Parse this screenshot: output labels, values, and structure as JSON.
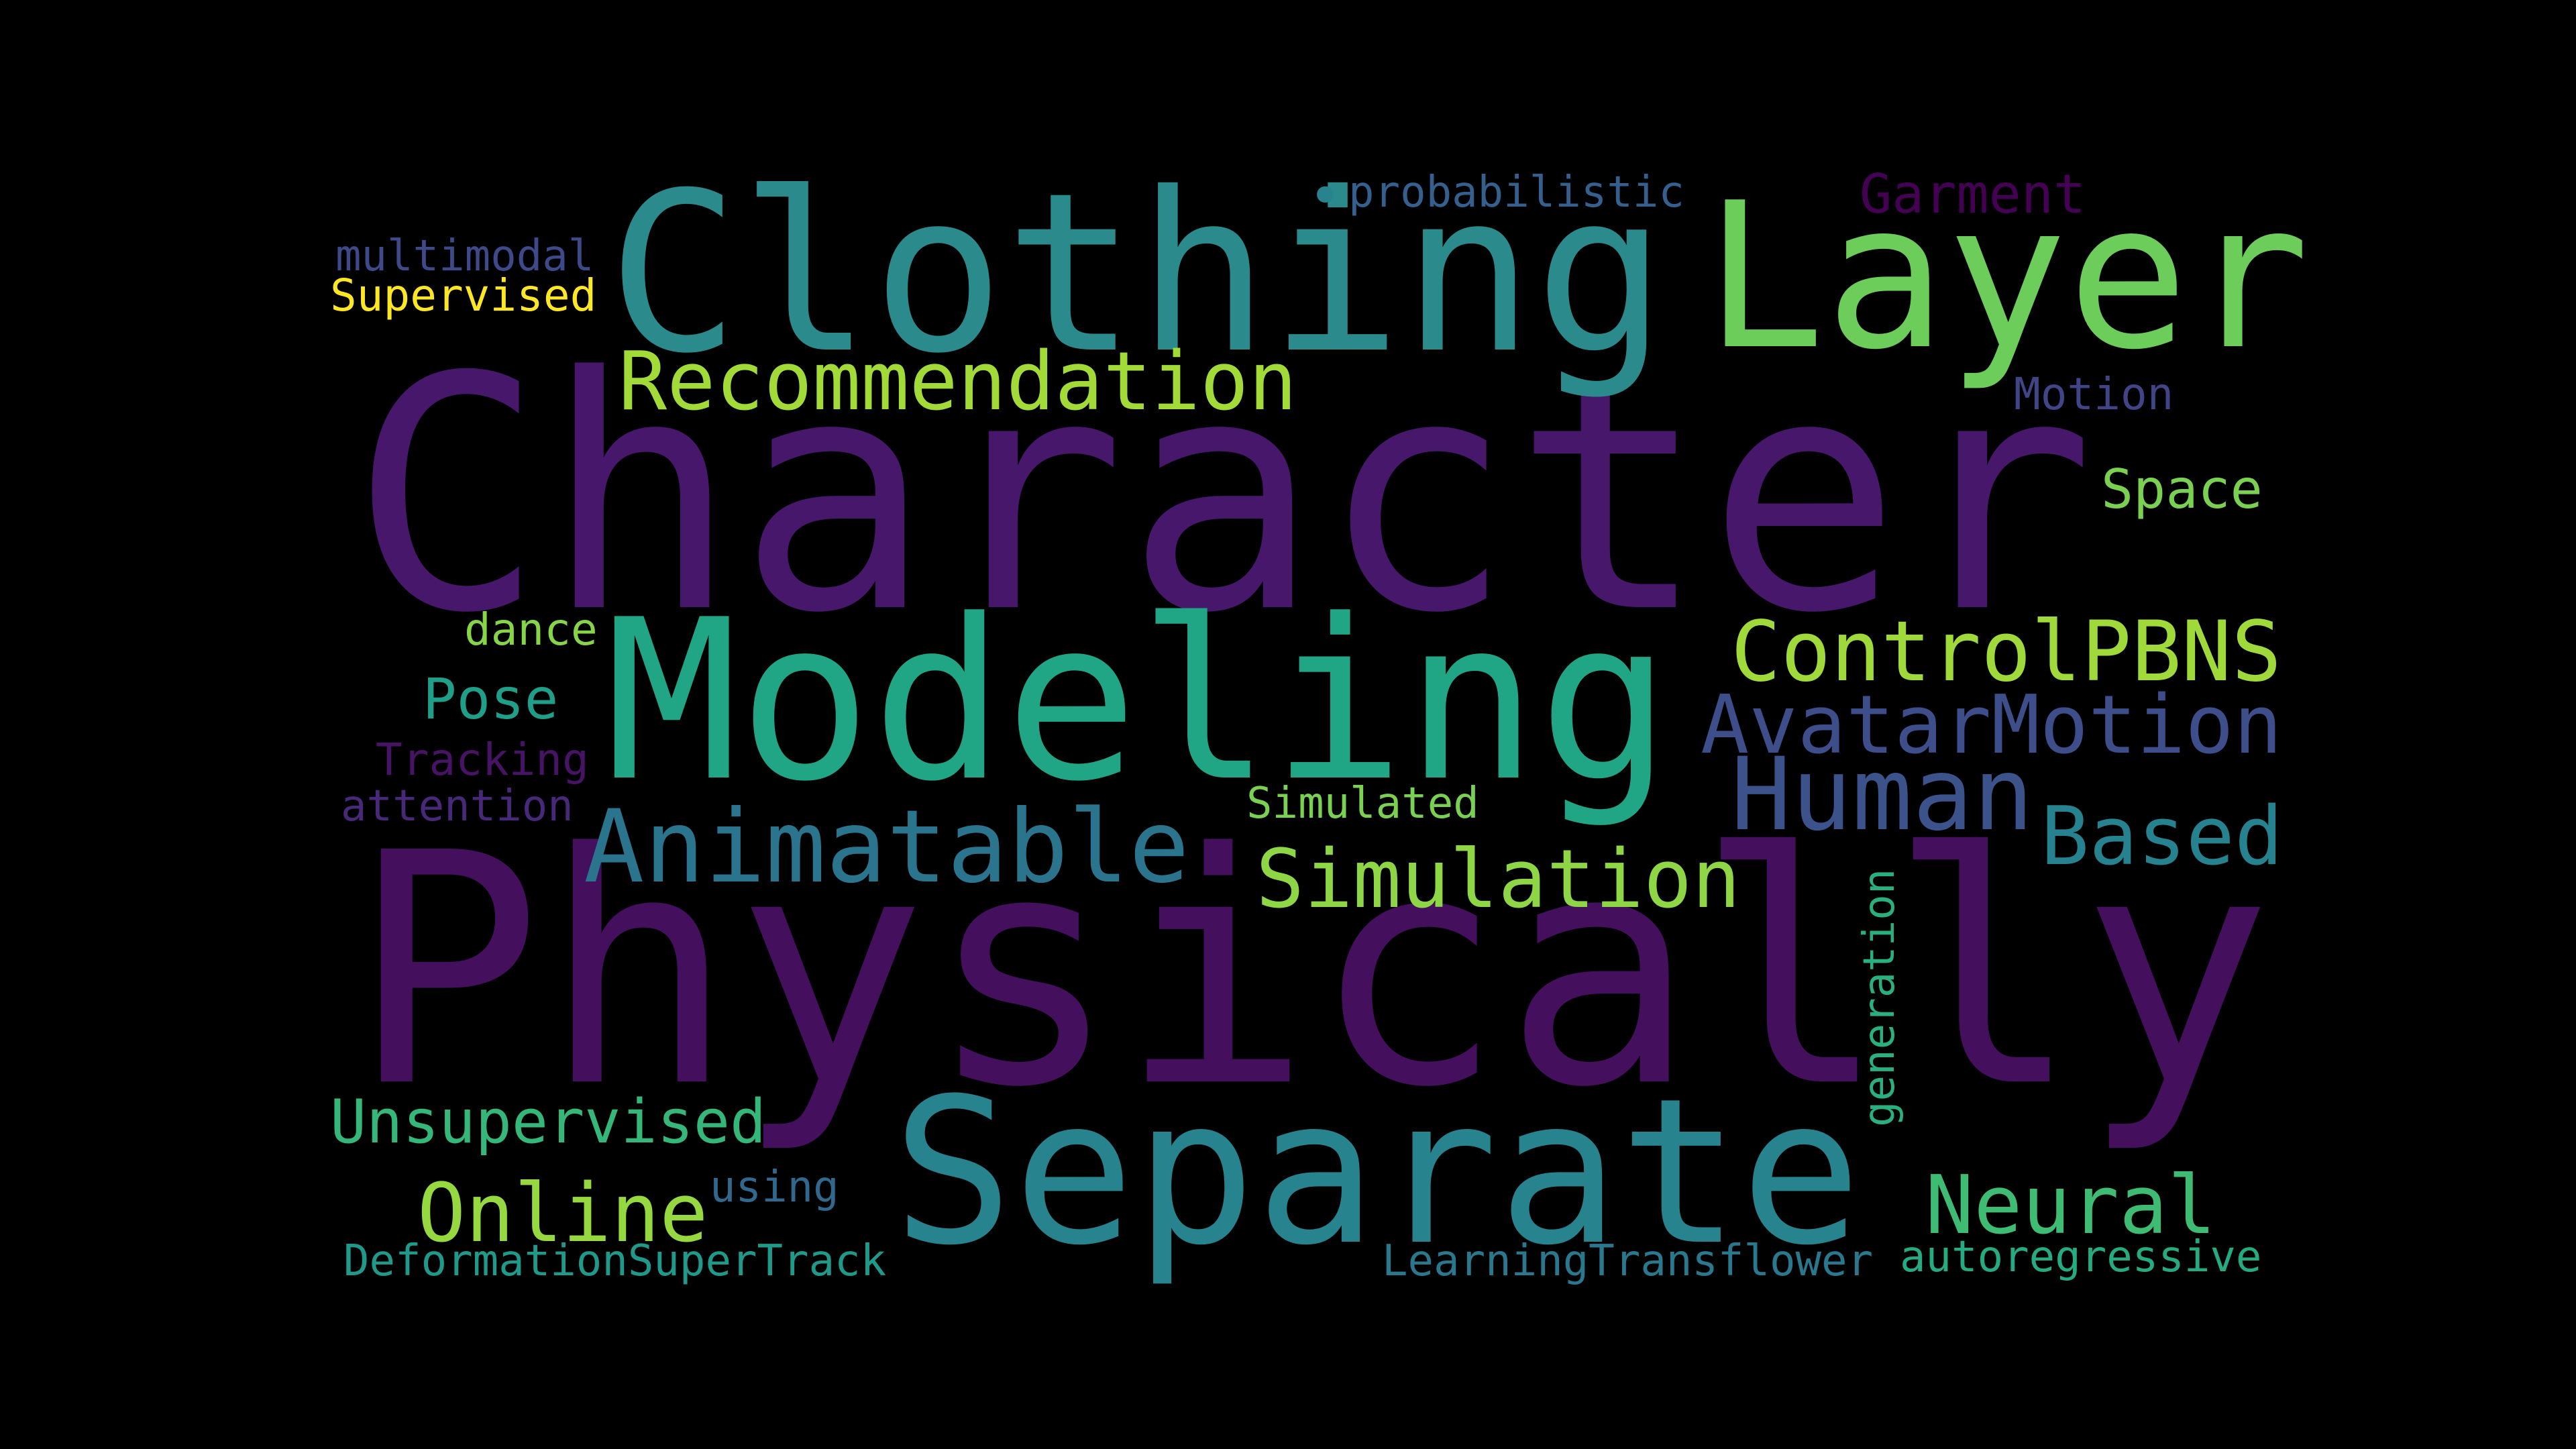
{
  "palette": {
    "background": "#000000",
    "dark_purple": "#440f5d",
    "purple": "#46176a",
    "indigo": "#3e4a8a",
    "blue": "#3d5492",
    "teal": "#2b8b8c",
    "teal_dark": "#27798a",
    "green_teal": "#26a47f",
    "green": "#3fba6f",
    "lime": "#72cf55",
    "yellow_green": "#a4d73f",
    "yellow": "#fde725"
  },
  "words": [
    {
      "id": "character",
      "text": "Character",
      "color": "#46176a"
    },
    {
      "id": "physically",
      "text": "Physically",
      "color": "#440f5d"
    },
    {
      "id": "clothing",
      "text": "Clothing",
      "color": "#2b8b8c"
    },
    {
      "id": "layer",
      "text": "Layer",
      "color": "#6ccd5a"
    },
    {
      "id": "modeling",
      "text": "Modeling",
      "color": "#21a685"
    },
    {
      "id": "separate",
      "text": "Separate",
      "color": "#27838e"
    },
    {
      "id": "recommendation",
      "text": "Recommendation",
      "color": "#a2da37"
    },
    {
      "id": "controlpbns",
      "text": "ControlPBNS",
      "color": "#9fda3a"
    },
    {
      "id": "avatarmotion",
      "text": "AvatarMotion",
      "color": "#3d4e8a"
    },
    {
      "id": "human",
      "text": "Human",
      "color": "#3b528b"
    },
    {
      "id": "animatable",
      "text": "Animatable",
      "color": "#2b748e"
    },
    {
      "id": "based",
      "text": "Based",
      "color": "#26828e"
    },
    {
      "id": "simulation",
      "text": "Simulation",
      "color": "#8ed645"
    },
    {
      "id": "neural",
      "text": "Neural",
      "color": "#3fbc73"
    },
    {
      "id": "online",
      "text": "Online",
      "color": "#95d840"
    },
    {
      "id": "unsupervised",
      "text": "Unsupervised",
      "color": "#35b779"
    },
    {
      "id": "garment",
      "text": "Garment",
      "color": "#440154"
    },
    {
      "id": "probabilistic",
      "text": "probabilistic",
      "color": "#355f8d"
    },
    {
      "id": "multimodal",
      "text": "multimodal",
      "color": "#3e4989"
    },
    {
      "id": "supervised",
      "text": "Supervised",
      "color": "#fde725"
    },
    {
      "id": "motion",
      "text": "Motion",
      "color": "#414487"
    },
    {
      "id": "space",
      "text": "Space",
      "color": "#7ad151"
    },
    {
      "id": "dance",
      "text": "dance",
      "color": "#86d549"
    },
    {
      "id": "pose",
      "text": "Pose",
      "color": "#1f9e89"
    },
    {
      "id": "tracking",
      "text": "Tracking",
      "color": "#471365"
    },
    {
      "id": "attention",
      "text": "attention",
      "color": "#482878"
    },
    {
      "id": "simulated",
      "text": "Simulated",
      "color": "#7ad151"
    },
    {
      "id": "generation",
      "text": "generation",
      "color": "#2ab07f"
    },
    {
      "id": "using",
      "text": "using",
      "color": "#31688e"
    },
    {
      "id": "deformationsupertrack",
      "text": "DeformationSuperTrack",
      "color": "#1f9a8a"
    },
    {
      "id": "learningtransflower",
      "text": "LearningTransflower",
      "color": "#2a788e"
    },
    {
      "id": "autoregressive",
      "text": "autoregressive",
      "color": "#25ab82"
    },
    {
      "id": "dot1",
      "text": "•",
      "color": "#27838e"
    },
    {
      "id": "dot2",
      "text": "•",
      "color": "#440f5d"
    }
  ]
}
